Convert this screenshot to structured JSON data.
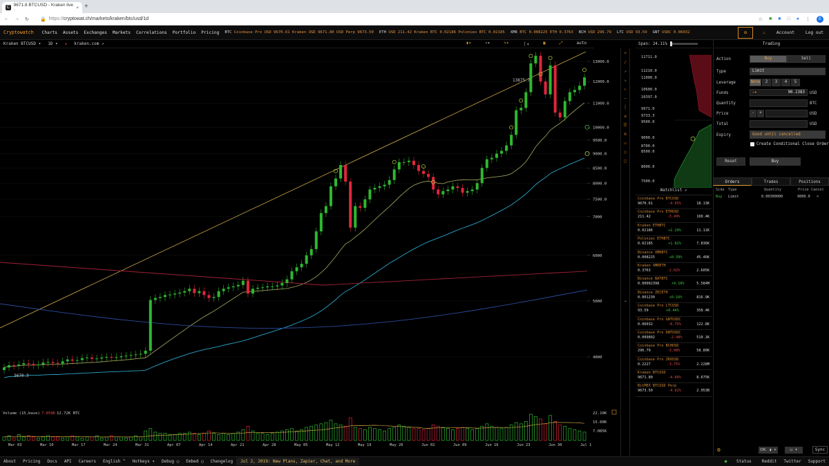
{
  "browser": {
    "tab_title": "9671.8 BTCUSD - Kraken live ·",
    "tab_close": "×",
    "new_tab": "+",
    "url_prefix": "https://",
    "url": "cryptowat.ch/markets/kraken/btc/usd/1d"
  },
  "nav": {
    "logo": "Cryptowatch",
    "links": [
      "Charts",
      "Assets",
      "Exchanges",
      "Markets",
      "Correlations",
      "Portfolio",
      "Pricing"
    ],
    "tickers": [
      {
        "sym": "BTC",
        "text": "Coinbase Pro USD 9670.61   Kraken USD 9671.80   USD Perp 9673.50"
      },
      {
        "sym": "ETH",
        "text": "USD 211.42   Kraken BTC 0.02186   Poloniex BTC 0.02185"
      },
      {
        "sym": "XMR",
        "text": "BTC 0.008225   ETH 0.3763"
      },
      {
        "sym": "BCH",
        "text": "USD 296.79"
      },
      {
        "sym": "LTC",
        "text": "USD 93.59"
      },
      {
        "sym": "GNT",
        "text": "USDC 0.06032"
      }
    ],
    "account": "Account",
    "logout": "Log out"
  },
  "toolbar": {
    "market": "Kraken BTCUSD ▾",
    "period": "1D ▾",
    "site": "kraken.com ↗",
    "auto": "auto"
  },
  "chart_data": {
    "type": "candlestick",
    "price_axis": [
      "13000.0",
      "12000.0",
      "11000.0",
      "10000.0",
      "9500.0",
      "9000.0",
      "8500.0",
      "8000.0",
      "7500.0",
      "7000",
      "6000",
      "5000",
      "4000"
    ],
    "date_axis": [
      "Mar 03",
      "Mar 10",
      "Mar 17",
      "Mar 24",
      "Mar 31",
      "Apr 07",
      "Apr 14",
      "Apr 21",
      "Apr 28",
      "May 05",
      "May 12",
      "May 19",
      "May 26",
      "Jun 02",
      "Jun 09",
      "Jun 16",
      "Jun 23",
      "Jun 30",
      "Jul 1"
    ],
    "annotations": {
      "high": "13875.7",
      "low": "3670.3"
    },
    "log_scale": true,
    "closes": [
      3835,
      3870,
      3860,
      3880,
      3900,
      3890,
      3870,
      3880,
      3910,
      3920,
      3905,
      3895,
      3930,
      3960,
      3940,
      3950,
      3980,
      3990,
      3970,
      3975,
      3990,
      4000,
      3990,
      3995,
      4010,
      4020,
      4030,
      4040,
      4050,
      4100,
      5020,
      5060,
      5080,
      5120,
      5130,
      5150,
      5170,
      5200,
      5250,
      5160,
      5200,
      5120,
      5060,
      5080,
      5200,
      5250,
      5280,
      5300,
      5330,
      5420,
      5150,
      5250,
      5270,
      5280,
      5300,
      5300,
      5320,
      5370,
      5450,
      5630,
      5720,
      5800,
      6000,
      6150,
      6600,
      7100,
      7300,
      7900,
      8150,
      8600,
      8050,
      6700,
      7300,
      7250,
      7500,
      7800,
      7850,
      7900,
      7950,
      8100,
      8450,
      8700,
      8700,
      8750,
      8600,
      8400,
      8300,
      8200,
      7800,
      7650,
      7750,
      7800,
      7900,
      7850,
      7700,
      7750,
      7800,
      8000,
      8500,
      8800,
      8850,
      9000,
      9100,
      9300,
      9700,
      10700,
      10800,
      11500,
      12900,
      13300,
      12000,
      11400,
      12800,
      10600,
      10400,
      11100,
      11500,
      11600,
      11800,
      12200
    ],
    "ma_short": "yellow 20d",
    "ma_mid": "teal 50d",
    "ma_long": "red 200d"
  },
  "volume": {
    "label": "Volume (15,base)",
    "v1": "7.858K",
    "v2": "12.72K BTC",
    "axis": [
      "22.10K",
      "15.00K",
      "7.085K"
    ],
    "values": [
      3,
      4,
      2,
      5,
      3,
      4,
      3,
      2,
      3,
      4,
      3,
      3,
      2,
      3,
      4,
      3,
      2,
      3,
      3,
      4,
      2,
      3,
      4,
      3,
      3,
      2,
      3,
      4,
      3,
      8,
      10,
      7,
      6,
      6,
      5,
      5,
      6,
      6,
      7,
      6,
      5,
      6,
      8,
      6,
      5,
      6,
      5,
      6,
      7,
      9,
      12,
      8,
      6,
      6,
      5,
      6,
      7,
      8,
      9,
      10,
      8,
      9,
      11,
      12,
      13,
      14,
      15,
      17,
      14,
      13,
      12,
      19,
      11,
      10,
      9,
      11,
      10,
      9,
      8,
      10,
      11,
      13,
      12,
      11,
      10,
      10,
      9,
      10,
      13,
      12,
      11,
      10,
      9,
      10,
      11,
      10,
      9,
      10,
      12,
      14,
      12,
      11,
      10,
      11,
      13,
      15,
      14,
      16,
      22,
      20,
      18,
      14,
      21,
      16,
      13,
      12,
      10,
      9,
      8,
      7
    ]
  },
  "depth": {
    "span": "Span: 24.11%",
    "levels": [
      "11711.0",
      "11210.0",
      "11000.0",
      "10600.0",
      "10397.0",
      "9971.0",
      "9733.3",
      "9500.0",
      "9000.0",
      "8700.0",
      "8500.0",
      "8000.0",
      "7500.0"
    ]
  },
  "watchlist": {
    "title": "Watchlist ↗",
    "items": [
      {
        "name": "Coinbase Pro BTCUSD",
        "price": "9670.61",
        "chg": "-4.65%",
        "dir": "neg",
        "vol": "18.13K"
      },
      {
        "name": "Coinbase Pro ETHUSD",
        "price": "211.42",
        "chg": "-3.49%",
        "dir": "neg",
        "vol": "160.4K"
      },
      {
        "name": "Kraken ETHBTC",
        "price": "0.02186",
        "chg": "+2.29%",
        "dir": "pos",
        "vol": "11.11K"
      },
      {
        "name": "Poloniex ETHBTC",
        "price": "0.02185",
        "chg": "+1.82%",
        "dir": "pos",
        "vol": "7.836K"
      },
      {
        "name": "Binance XMRBTC",
        "price": "0.008225",
        "chg": "+0.39%",
        "dir": "pos",
        "vol": "45.46K"
      },
      {
        "name": "Kraken XMRETH",
        "price": "0.3763",
        "chg": "-2.02%",
        "dir": "neg",
        "vol": "2.605K"
      },
      {
        "name": "Binance BATBTC",
        "price": "0.00002398",
        "chg": "+9.18%",
        "dir": "pos",
        "vol": "5.584M"
      },
      {
        "name": "Binance ZECETH",
        "price": "0.001230",
        "chg": "+0.16%",
        "dir": "pos",
        "vol": "816.9K"
      },
      {
        "name": "Coinbase Pro LTCUSD",
        "price": "93.59",
        "chg": "+0.44%",
        "dir": "pos",
        "vol": "358.4K"
      },
      {
        "name": "Coinbase Pro GNTUSDC",
        "price": "0.06032",
        "chg": "-0.75%",
        "dir": "neg",
        "vol": "122.8K"
      },
      {
        "name": "Coinbase Pro DNTUSDC",
        "price": "0.009802",
        "chg": "-2.48%",
        "dir": "neg",
        "vol": "510.1K"
      },
      {
        "name": "Coinbase Pro BCHUSD",
        "price": "296.79",
        "chg": "-3.08%",
        "dir": "neg",
        "vol": "58.80K"
      },
      {
        "name": "Coinbase Pro ZRXUSD",
        "price": "0.2227",
        "chg": "-3.75%",
        "dir": "neg",
        "vol": "2.228M"
      },
      {
        "name": "Kraken BTCUSD",
        "price": "9671.80",
        "chg": "-4.66%",
        "dir": "neg",
        "vol": "8.675K"
      },
      {
        "name": "BitMEX BTCUSD Perp",
        "price": "9673.50",
        "chg": "-4.62%",
        "dir": "neg",
        "vol": "2.953B"
      }
    ]
  },
  "trading": {
    "title": "Trading",
    "action": "Action",
    "buy": "Buy",
    "sell": "Sell",
    "type": "Type",
    "type_val": "Limit",
    "leverage": "Leverage",
    "lev_none": "None",
    "lev": [
      "2",
      "3",
      "4",
      "5"
    ],
    "funds": "Funds",
    "funds_val": "90.1383",
    "funds_unit": "USD",
    "quantity": "Quantity",
    "qty_unit": "BTC",
    "price": "Price",
    "price_unit": "USD",
    "total": "Total",
    "total_unit": "USD",
    "expiry": "Expiry",
    "expiry_val": "Good until cancelled",
    "conditional": "Create Conditional Close Order",
    "reset": "Reset",
    "submit": "Buy"
  },
  "orders": {
    "tabs": [
      "Orders",
      "Trades",
      "Positions"
    ],
    "cols": [
      "Side",
      "Type",
      "Quantity",
      "Price",
      "Cancel"
    ],
    "row": {
      "side": "Buy",
      "type": "Limit",
      "qty": "0.00300000",
      "price": "9000.0",
      "cancel": "×"
    }
  },
  "footer": {
    "links": [
      "About",
      "Pricing",
      "Docs",
      "API",
      "Careers",
      "English ^",
      "Hotkeys ▾",
      "Debug ◯",
      "Embed ◯",
      "Changelog"
    ],
    "news": "Jul 2, 2019: New Plans, Zapier, Chat, and More",
    "right": [
      "Status",
      "Reddit",
      "Twitter",
      "Support"
    ]
  },
  "bottom": {
    "sync": "Sync"
  },
  "colors": {
    "up": "#2fb82f",
    "down": "#e0263c",
    "accent": "#f0a030",
    "trend": "#c9a545"
  }
}
